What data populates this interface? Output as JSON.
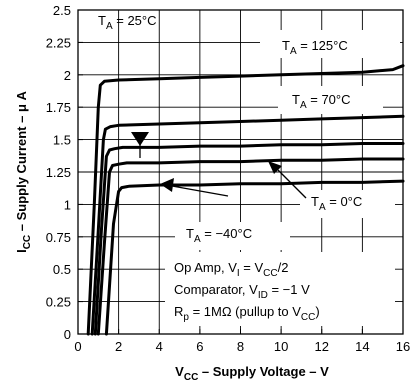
{
  "chart_data": {
    "type": "line",
    "xlabel": "V",
    "xlabel_sub": "CC",
    "xlabel_rest": " – Supply Voltage – V",
    "ylabel": "I",
    "ylabel_sub": "CC",
    "ylabel_rest": " – Supply Current – μ A",
    "xlim": [
      0,
      16
    ],
    "ylim": [
      0,
      2.5
    ],
    "x_ticks": [
      "0",
      "2",
      "4",
      "6",
      "8",
      "10",
      "12",
      "14",
      "16"
    ],
    "y_ticks": [
      "0",
      "0.25",
      "0.5",
      "0.75",
      "1",
      "1.25",
      "1.5",
      "1.75",
      "2",
      "2.25",
      "2.5"
    ],
    "grid": true,
    "series": [
      {
        "name": "TA = 125°C",
        "name_main": "T",
        "name_sub": "A",
        "name_rest": " = 125°C",
        "x": [
          0.5,
          0.8,
          1.0,
          1.1,
          1.3,
          2,
          4,
          6,
          8,
          10,
          12,
          14,
          15.5,
          16
        ],
        "y": [
          0,
          1.0,
          1.75,
          1.92,
          1.95,
          1.96,
          1.97,
          1.98,
          1.99,
          2.0,
          2.01,
          2.02,
          2.04,
          2.07
        ]
      },
      {
        "name": "TA = 70°C",
        "name_main": "T",
        "name_sub": "A",
        "name_rest": " = 70°C",
        "x": [
          0.7,
          1.0,
          1.25,
          1.35,
          1.6,
          2,
          4,
          6,
          8,
          10,
          12,
          14,
          16
        ],
        "y": [
          0,
          0.8,
          1.5,
          1.58,
          1.6,
          1.61,
          1.62,
          1.63,
          1.64,
          1.65,
          1.66,
          1.67,
          1.68
        ]
      },
      {
        "name": "",
        "x": [
          0.85,
          1.15,
          1.4,
          1.55,
          1.8,
          2.2,
          4,
          6,
          8,
          10,
          12,
          14,
          16
        ],
        "y": [
          0,
          0.8,
          1.37,
          1.42,
          1.43,
          1.44,
          1.44,
          1.45,
          1.45,
          1.46,
          1.46,
          1.47,
          1.47
        ]
      },
      {
        "name": "TA = 0°C",
        "name_main": "T",
        "name_sub": "A",
        "name_rest": " = 0°C",
        "x": [
          1.0,
          1.3,
          1.55,
          1.7,
          2.0,
          2.4,
          4,
          6,
          8,
          10,
          12,
          14,
          16
        ],
        "y": [
          0,
          0.7,
          1.25,
          1.3,
          1.31,
          1.32,
          1.32,
          1.33,
          1.33,
          1.34,
          1.34,
          1.35,
          1.35
        ]
      },
      {
        "name": "TA = −40°C",
        "name_main": "T",
        "name_sub": "A",
        "name_rest": " = −40°C",
        "x": [
          1.4,
          1.75,
          2.0,
          2.15,
          2.5,
          4,
          6,
          8,
          10,
          12,
          14,
          16
        ],
        "y": [
          0,
          0.85,
          1.1,
          1.13,
          1.14,
          1.15,
          1.15,
          1.16,
          1.16,
          1.17,
          1.17,
          1.18
        ]
      }
    ],
    "annotations": {
      "t25": {
        "main": "T",
        "sub": "A",
        "rest": " = 25°C"
      },
      "line1": {
        "pre": "Op Amp, V",
        "sub": "I",
        "mid": " = V",
        "sub2": "CC",
        "post": "/2"
      },
      "line2": {
        "pre": "Comparator, V",
        "sub": "ID",
        "post": " = −1 V"
      },
      "line3": {
        "pre": "R",
        "sub": "p",
        "mid": " = 1MΩ (pullup to V",
        "sub2": "CC",
        "post": ")"
      }
    }
  }
}
